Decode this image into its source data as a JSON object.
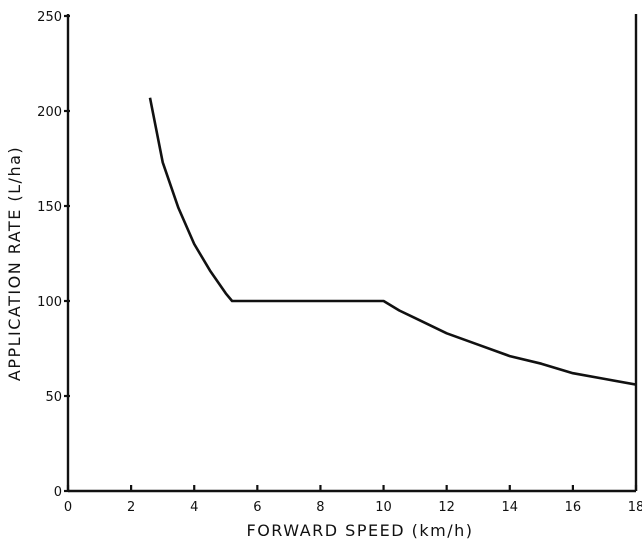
{
  "chart_data": {
    "type": "line",
    "title": "",
    "xlabel": "FORWARD SPEED (km/h)",
    "ylabel": "APPLICATION RATE (L/ha)",
    "xlim": [
      0,
      18
    ],
    "ylim": [
      0,
      250
    ],
    "x_ticks": [
      0,
      2,
      4,
      6,
      8,
      10,
      12,
      14,
      16,
      18
    ],
    "y_ticks": [
      0,
      50,
      100,
      150,
      200,
      250
    ],
    "grid": false,
    "legend": "none",
    "series": [
      {
        "x": [
          2.6,
          3.0,
          3.5,
          4.0,
          4.5,
          5.0,
          5.2,
          6.0,
          7.0,
          8.0,
          9.0,
          10.0,
          10.5,
          11.0,
          12.0,
          13.0,
          14.0,
          15.0,
          16.0,
          17.0,
          18.0
        ],
        "y": [
          207,
          173,
          149,
          130,
          116,
          104,
          100,
          100,
          100,
          100,
          100,
          100,
          95,
          91,
          83,
          77,
          71,
          67,
          62,
          59,
          56
        ]
      }
    ]
  }
}
